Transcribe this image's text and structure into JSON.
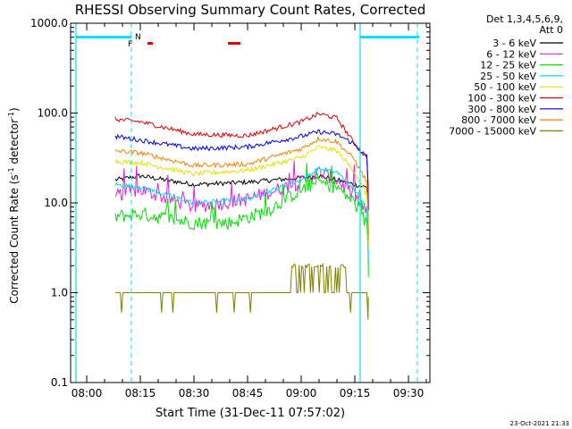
{
  "chart_data": {
    "type": "line",
    "title": "RHESSI Observing Summary Count Rates, Corrected",
    "xlabel": "Start Time (31-Dec-11 07:57:02)",
    "ylabel": "Corrected Count Rate (s⁻¹ detector⁻¹)",
    "ylabel_main": "Corrected Count Rate (s",
    "ylabel_sup1": "-1",
    "ylabel_mid": " detector",
    "ylabel_sup2": "-1",
    "ylabel_end": ")",
    "yscale": "log",
    "ylim": [
      0.1,
      1000
    ],
    "xlim": [
      "07:55:30",
      "09:36:00"
    ],
    "x_ticks": [
      "08:00",
      "08:15",
      "08:30",
      "08:45",
      "09:00",
      "09:15",
      "09:30"
    ],
    "y_ticks": [
      "1000.0",
      "100.0",
      "10.0",
      "1.0",
      "0.1"
    ],
    "footer": "23-Oct-2021 21:33",
    "legend_header": [
      "Det 1,3,4,5,6,9,",
      "Att 0"
    ],
    "legend_position": "right",
    "flag_labels": {
      "N": "N",
      "F": "F"
    },
    "vertical_markers": [
      "07:57:00",
      "08:12:30",
      "09:16:30",
      "09:32:30"
    ],
    "series": [
      {
        "name": "3 - 6 keV",
        "color": "#000000",
        "times": [
          "08:08",
          "08:15",
          "08:30",
          "08:45",
          "09:00",
          "09:05",
          "09:10",
          "09:15",
          "09:18"
        ],
        "values": [
          18,
          20,
          16,
          17,
          19,
          20,
          18,
          16,
          15
        ]
      },
      {
        "name": "6 - 12 keV",
        "color": "#e020e0",
        "times": [
          "08:08",
          "08:15",
          "08:30",
          "08:45",
          "09:00",
          "09:05",
          "09:10",
          "09:15",
          "09:18"
        ],
        "values": [
          12,
          14,
          9,
          11,
          17,
          22,
          18,
          12,
          8
        ]
      },
      {
        "name": "12 - 25 keV",
        "color": "#00e000",
        "times": [
          "08:08",
          "08:15",
          "08:30",
          "08:40",
          "08:50",
          "09:00",
          "09:05",
          "09:10",
          "09:15",
          "09:18"
        ],
        "values": [
          7,
          7.5,
          6,
          6,
          8,
          14,
          17,
          15,
          10,
          6
        ]
      },
      {
        "name": "25 - 50 keV",
        "color": "#00e0e0",
        "times": [
          "08:08",
          "08:15",
          "08:30",
          "08:45",
          "09:00",
          "09:05",
          "09:10",
          "09:15",
          "09:18"
        ],
        "values": [
          16,
          15,
          10,
          11,
          18,
          24,
          22,
          14,
          9
        ]
      },
      {
        "name": "50 - 100 keV",
        "color": "#e0e000",
        "times": [
          "08:08",
          "08:15",
          "08:30",
          "08:45",
          "09:00",
          "09:05",
          "09:10",
          "09:15",
          "09:18"
        ],
        "values": [
          29,
          28,
          21,
          23,
          32,
          42,
          38,
          22,
          13
        ]
      },
      {
        "name": "100 - 300 keV",
        "color": "#e00000",
        "times": [
          "08:08",
          "08:15",
          "08:30",
          "08:45",
          "09:00",
          "09:05",
          "09:10",
          "09:15",
          "09:18"
        ],
        "values": [
          85,
          80,
          58,
          56,
          80,
          98,
          88,
          45,
          33
        ]
      },
      {
        "name": "300 - 800 keV",
        "color": "#0000e0",
        "times": [
          "08:08",
          "08:15",
          "08:30",
          "08:45",
          "09:00",
          "09:05",
          "09:10",
          "09:15",
          "09:18"
        ],
        "values": [
          55,
          50,
          40,
          42,
          55,
          62,
          58,
          45,
          33
        ]
      },
      {
        "name": "800 - 7000 keV",
        "color": "#f08000",
        "times": [
          "08:08",
          "08:15",
          "08:30",
          "08:45",
          "09:00",
          "09:05",
          "09:10",
          "09:15",
          "09:18"
        ],
        "values": [
          38,
          36,
          26,
          27,
          40,
          52,
          48,
          30,
          18
        ]
      },
      {
        "name": "7000 - 15000 keV",
        "color": "#808000",
        "times": [
          "08:08",
          "08:15",
          "08:30",
          "08:45",
          "08:57",
          "09:00",
          "09:05",
          "09:10",
          "09:15",
          "09:18"
        ],
        "values": [
          1,
          1,
          1,
          1,
          1,
          1.8,
          2,
          1.9,
          1,
          1
        ]
      }
    ]
  }
}
